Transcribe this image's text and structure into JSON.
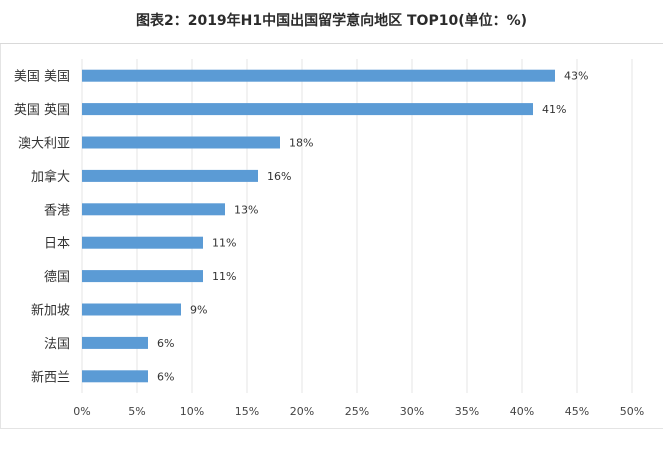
{
  "chart_data": {
    "type": "bar",
    "orientation": "horizontal",
    "title": "图表2：2019年H1中国出国留学意向地区 TOP10(单位：%)",
    "categories": [
      "美国  美国",
      "英国  英国",
      "澳大利亚",
      "加拿大",
      "香港",
      "日本",
      "德国",
      "新加坡",
      "法国",
      "新西兰"
    ],
    "values": [
      43,
      41,
      18,
      16,
      13,
      11,
      11,
      9,
      6,
      6
    ],
    "value_labels": [
      "43%",
      "41%",
      "18%",
      "16%",
      "13%",
      "11%",
      "11%",
      "9%",
      "6%",
      "6%"
    ],
    "xticks": [
      "0%",
      "5%",
      "10%",
      "15%",
      "20%",
      "25%",
      "30%",
      "35%",
      "40%",
      "45%",
      "50%"
    ],
    "xlim": [
      0,
      50
    ],
    "xlabel": "",
    "ylabel": "",
    "grid": "vertical",
    "legend": "none",
    "bar_color": "#5b9bd5",
    "grid_color": "#e6e6e6"
  }
}
